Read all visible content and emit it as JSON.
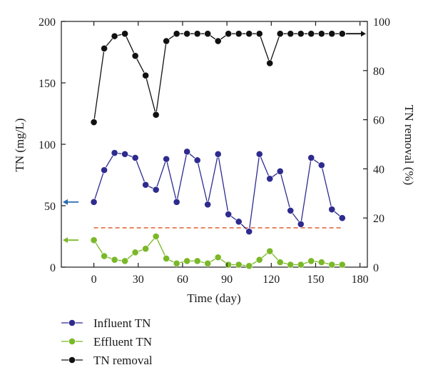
{
  "chart_data": {
    "type": "line",
    "x": [
      0,
      7,
      14,
      21,
      28,
      35,
      42,
      49,
      56,
      63,
      70,
      77,
      84,
      91,
      98,
      105,
      112,
      119,
      126,
      133,
      140,
      147,
      154,
      161,
      168
    ],
    "xlabel": "Time (day)",
    "xlim": [
      -22,
      185
    ],
    "xticks": [
      0,
      30,
      60,
      90,
      120,
      150,
      180
    ],
    "ylabel_left": "TN (mg/L)",
    "ylim_left": [
      0,
      200
    ],
    "yticks_left": [
      0,
      50,
      100,
      150,
      200
    ],
    "ylabel_right": "TN removal (%)",
    "ylim_right": [
      0,
      100
    ],
    "yticks_right": [
      0,
      20,
      40,
      60,
      80,
      100
    ],
    "series": [
      {
        "name": "Influent TN",
        "axis": "left",
        "color": "#2e2b8f",
        "values": [
          53,
          79,
          93,
          92,
          89,
          67,
          63,
          88,
          53,
          94,
          87,
          51,
          92,
          43,
          37,
          29,
          92,
          72,
          78,
          46,
          35,
          89,
          83,
          47,
          40
        ]
      },
      {
        "name": "Effluent TN",
        "axis": "left",
        "color": "#7ab828",
        "values": [
          22,
          9,
          6,
          5,
          12,
          15,
          25,
          7,
          3,
          5,
          5,
          3,
          8,
          2,
          2,
          1,
          6,
          13,
          4,
          2,
          2,
          5,
          4,
          2,
          2
        ]
      },
      {
        "name": "TN removal",
        "axis": "right",
        "color": "#111111",
        "values": [
          59,
          89,
          94,
          95,
          86,
          78,
          62,
          92,
          95,
          95,
          95,
          95,
          92,
          95,
          95,
          95,
          95,
          83,
          95,
          95,
          95,
          95,
          95,
          95,
          95
        ]
      }
    ],
    "reference_line": {
      "axis": "left",
      "value": 32,
      "style": "dashed",
      "color": "#d9531e"
    },
    "axis_arrows": [
      {
        "series": "Influent TN",
        "direction": "left",
        "value": 53,
        "color": "#2a6bb5"
      },
      {
        "series": "Effluent TN",
        "direction": "left",
        "value": 22,
        "color": "#7ab828"
      },
      {
        "series": "TN removal",
        "direction": "right",
        "value": 95,
        "color": "#111111"
      }
    ],
    "grid": false,
    "legend_position": "bottom-left"
  }
}
